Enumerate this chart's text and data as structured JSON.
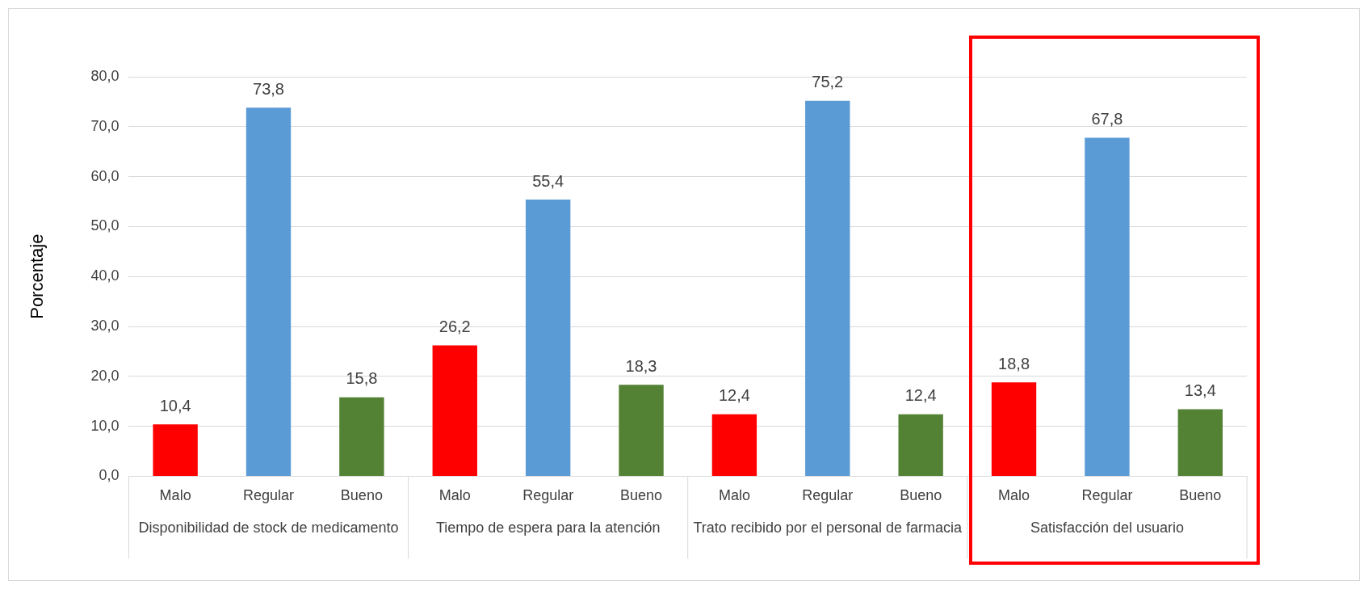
{
  "chart_data": {
    "type": "bar",
    "ylabel": "Porcentaje",
    "categories": [
      "Malo",
      "Regular",
      "Bueno",
      "Malo",
      "Regular",
      "Bueno",
      "Malo",
      "Regular",
      "Bueno",
      "Malo",
      "Regular",
      "Bueno"
    ],
    "values": [
      10.4,
      73.8,
      15.8,
      26.2,
      55.4,
      18.3,
      12.4,
      75.2,
      12.4,
      18.8,
      67.8,
      13.4
    ],
    "colors": [
      "#ff0000",
      "#5b9bd5",
      "#548235",
      "#ff0000",
      "#5b9bd5",
      "#548235",
      "#ff0000",
      "#5b9bd5",
      "#548235",
      "#ff0000",
      "#5b9bd5",
      "#548235"
    ],
    "value_labels": [
      "10,4",
      "73,8",
      "15,8",
      "26,2",
      "55,4",
      "18,3",
      "12,4",
      "75,2",
      "12,4",
      "18,8",
      "67,8",
      "13,4"
    ],
    "ylim": [
      0,
      80
    ],
    "yticks": [
      {
        "value": 0,
        "label": "0,0"
      },
      {
        "value": 10,
        "label": "10,0"
      },
      {
        "value": 20,
        "label": "20,0"
      },
      {
        "value": 30,
        "label": "30,0"
      },
      {
        "value": 40,
        "label": "40,0"
      },
      {
        "value": 50,
        "label": "50,0"
      },
      {
        "value": 60,
        "label": "60,0"
      },
      {
        "value": 70,
        "label": "70,0"
      },
      {
        "value": 80,
        "label": "80,0"
      }
    ],
    "grid": "y",
    "annotations": [
      "Disponibilidad de stock de medicamento",
      "Tiempo de espera para la atención",
      "Trato recibido por el personal de farmacia",
      "Satisfacción del usuario"
    ]
  }
}
